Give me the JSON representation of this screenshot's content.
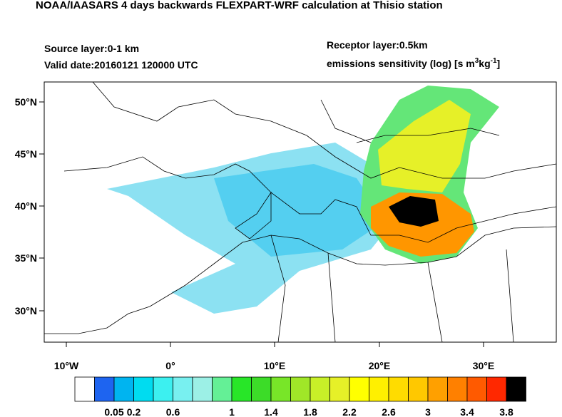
{
  "header": {
    "title": "NOAA/IAASARS 4 days backwards FLEXPART-WRF calculation at Thisio station",
    "source_layer": "Source layer:0-1 km",
    "valid_date": "Valid date:20160121 120000 UTC",
    "receptor_layer": "Receptor layer:0.5km",
    "units": {
      "text": "emissions sensitivity (log) [s m",
      "sup1": "3",
      "mid": "kg",
      "sup2": "-1",
      "end": "]"
    }
  },
  "map": {
    "lat_labels": [
      "50°N",
      "45°N",
      "40°N",
      "35°N",
      "30°N"
    ],
    "lon_labels": [
      "10°W",
      "0°",
      "10°E",
      "20°E",
      "30°E"
    ]
  },
  "colorbar": {
    "colors": [
      "#ffffff",
      "#1e64f0",
      "#00b4f0",
      "#00dcf0",
      "#3cf0f0",
      "#78f0f0",
      "#9cf0e6",
      "#64f096",
      "#28e628",
      "#3cdc28",
      "#78e628",
      "#a0e628",
      "#c8f028",
      "#e6f028",
      "#ffff00",
      "#fff000",
      "#ffdc00",
      "#ffc800",
      "#ffa000",
      "#ff8000",
      "#ff5a00",
      "#ff2800",
      "#000000"
    ],
    "labels": [
      "0.05",
      "0.2",
      "0.6",
      "1",
      "1.4",
      "1.8",
      "2.2",
      "2.6",
      "3",
      "3.4",
      "3.8"
    ]
  }
}
